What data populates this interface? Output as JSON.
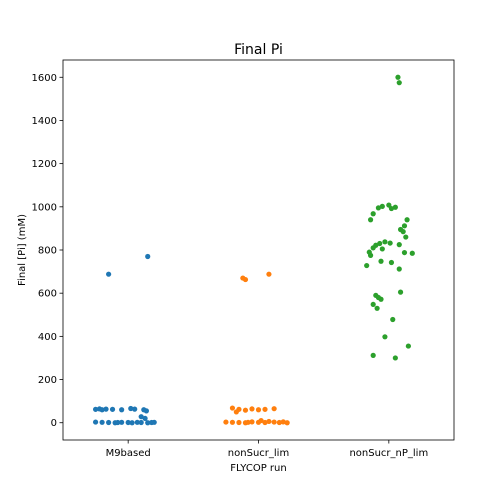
{
  "chart_data": {
    "type": "scatter",
    "title": "Final Pi",
    "xlabel": "FLYCOP run",
    "ylabel": "Final [Pi] (mM)",
    "categories": [
      "M9based",
      "nonSucr_lim",
      "nonSucr_nP_lim"
    ],
    "ylim": [
      -80,
      1680
    ],
    "yticks": [
      0,
      200,
      400,
      600,
      800,
      1000,
      1200,
      1400,
      1600
    ],
    "grid": false,
    "series": [
      {
        "category": "M9based",
        "color": "#1f77b4",
        "points": [
          {
            "x": 0.15,
            "y": 770
          },
          {
            "x": -0.15,
            "y": 688
          },
          {
            "x": -0.25,
            "y": 62
          },
          {
            "x": -0.22,
            "y": 64
          },
          {
            "x": -0.2,
            "y": 60
          },
          {
            "x": -0.17,
            "y": 63
          },
          {
            "x": -0.12,
            "y": 62
          },
          {
            "x": -0.05,
            "y": 60
          },
          {
            "x": 0.02,
            "y": 66
          },
          {
            "x": 0.05,
            "y": 63
          },
          {
            "x": 0.12,
            "y": 60
          },
          {
            "x": 0.14,
            "y": 55
          },
          {
            "x": 0.1,
            "y": 28
          },
          {
            "x": 0.13,
            "y": 20
          },
          {
            "x": -0.25,
            "y": 3
          },
          {
            "x": -0.2,
            "y": 2
          },
          {
            "x": -0.15,
            "y": 1
          },
          {
            "x": -0.1,
            "y": 0
          },
          {
            "x": -0.05,
            "y": 2
          },
          {
            "x": 0.0,
            "y": 1
          },
          {
            "x": 0.03,
            "y": 0
          },
          {
            "x": 0.07,
            "y": 2
          },
          {
            "x": 0.1,
            "y": 1
          },
          {
            "x": 0.15,
            "y": 0
          },
          {
            "x": 0.2,
            "y": 2
          },
          {
            "x": -0.08,
            "y": 1
          },
          {
            "x": 0.18,
            "y": 1
          }
        ]
      },
      {
        "category": "nonSucr_lim",
        "color": "#ff7f0e",
        "points": [
          {
            "x": 0.08,
            "y": 688
          },
          {
            "x": -0.12,
            "y": 670
          },
          {
            "x": -0.1,
            "y": 663
          },
          {
            "x": -0.2,
            "y": 68
          },
          {
            "x": -0.15,
            "y": 62
          },
          {
            "x": -0.1,
            "y": 58
          },
          {
            "x": -0.05,
            "y": 64
          },
          {
            "x": 0.0,
            "y": 60
          },
          {
            "x": 0.05,
            "y": 62
          },
          {
            "x": 0.12,
            "y": 65
          },
          {
            "x": -0.17,
            "y": 50
          },
          {
            "x": -0.25,
            "y": 3
          },
          {
            "x": -0.2,
            "y": 2
          },
          {
            "x": -0.15,
            "y": 1
          },
          {
            "x": -0.1,
            "y": 0
          },
          {
            "x": -0.05,
            "y": 4
          },
          {
            "x": 0.0,
            "y": 2
          },
          {
            "x": 0.05,
            "y": 1
          },
          {
            "x": 0.08,
            "y": 6
          },
          {
            "x": 0.12,
            "y": 3
          },
          {
            "x": 0.16,
            "y": 1
          },
          {
            "x": 0.22,
            "y": 0
          },
          {
            "x": 0.02,
            "y": 10
          },
          {
            "x": -0.08,
            "y": 2
          },
          {
            "x": 0.19,
            "y": 4
          }
        ]
      },
      {
        "category": "nonSucr_nP_lim",
        "color": "#2ca02c",
        "points": [
          {
            "x": 0.07,
            "y": 1600
          },
          {
            "x": 0.08,
            "y": 1575
          },
          {
            "x": -0.05,
            "y": 1002
          },
          {
            "x": 0.0,
            "y": 1008
          },
          {
            "x": 0.05,
            "y": 998
          },
          {
            "x": -0.08,
            "y": 995
          },
          {
            "x": 0.02,
            "y": 992
          },
          {
            "x": -0.12,
            "y": 968
          },
          {
            "x": -0.14,
            "y": 940
          },
          {
            "x": 0.14,
            "y": 940
          },
          {
            "x": 0.12,
            "y": 912
          },
          {
            "x": 0.09,
            "y": 895
          },
          {
            "x": 0.11,
            "y": 885
          },
          {
            "x": 0.13,
            "y": 860
          },
          {
            "x": -0.03,
            "y": 838
          },
          {
            "x": -0.07,
            "y": 830
          },
          {
            "x": 0.01,
            "y": 832
          },
          {
            "x": 0.08,
            "y": 825
          },
          {
            "x": -0.1,
            "y": 822
          },
          {
            "x": -0.12,
            "y": 810
          },
          {
            "x": -0.05,
            "y": 805
          },
          {
            "x": -0.15,
            "y": 790
          },
          {
            "x": 0.12,
            "y": 788
          },
          {
            "x": 0.18,
            "y": 785
          },
          {
            "x": -0.14,
            "y": 775
          },
          {
            "x": -0.06,
            "y": 748
          },
          {
            "x": 0.02,
            "y": 742
          },
          {
            "x": -0.17,
            "y": 728
          },
          {
            "x": 0.08,
            "y": 712
          },
          {
            "x": 0.09,
            "y": 605
          },
          {
            "x": -0.1,
            "y": 590
          },
          {
            "x": -0.08,
            "y": 580
          },
          {
            "x": -0.06,
            "y": 572
          },
          {
            "x": -0.12,
            "y": 548
          },
          {
            "x": -0.09,
            "y": 530
          },
          {
            "x": 0.03,
            "y": 478
          },
          {
            "x": -0.03,
            "y": 398
          },
          {
            "x": 0.15,
            "y": 355
          },
          {
            "x": -0.12,
            "y": 312
          },
          {
            "x": 0.05,
            "y": 300
          }
        ]
      }
    ]
  }
}
